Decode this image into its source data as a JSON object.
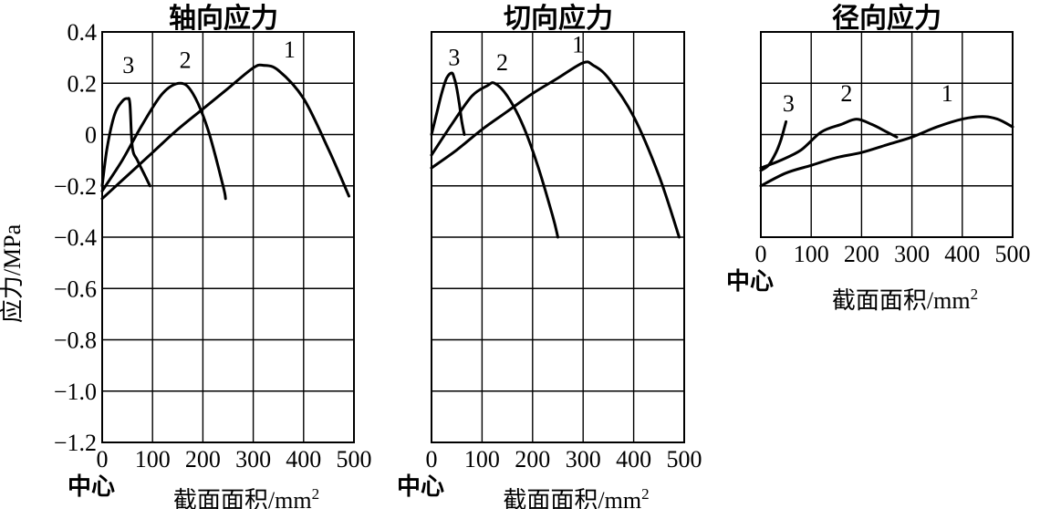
{
  "chart_data": [
    {
      "type": "line",
      "title": "轴向应力",
      "ylabel": "应力/MPa",
      "xlabel": "截面面积/mm",
      "xlabel_sup": "2",
      "xlabel_center": "中心",
      "xlim": [
        0,
        500
      ],
      "ylim": [
        -1.2,
        0.4
      ],
      "xticks": [
        0,
        100,
        200,
        300,
        400,
        500
      ],
      "xtick_labels": [
        "0",
        "100",
        "200",
        "300",
        "400",
        "500"
      ],
      "yticks": [
        -1.2,
        -1.0,
        -0.8,
        -0.6,
        -0.4,
        -0.2,
        0,
        0.2,
        0.4
      ],
      "ytick_labels": [
        "-1.2",
        "-1.0",
        "-0.8",
        "-0.6",
        "-0.4",
        "-0.2",
        "0",
        "0.2",
        "0.4"
      ],
      "grid": true,
      "series": [
        {
          "name": "1",
          "x": [
            0,
            50,
            100,
            150,
            200,
            250,
            300,
            320,
            350,
            400,
            450,
            490
          ],
          "y": [
            -0.25,
            -0.16,
            -0.07,
            0.02,
            0.1,
            0.18,
            0.26,
            0.27,
            0.25,
            0.14,
            -0.06,
            -0.24
          ]
        },
        {
          "name": "2",
          "x": [
            0,
            40,
            80,
            120,
            155,
            180,
            210,
            240,
            245
          ],
          "y": [
            -0.22,
            -0.1,
            0.04,
            0.16,
            0.2,
            0.16,
            0.02,
            -0.2,
            -0.25
          ]
        },
        {
          "name": "3",
          "x": [
            0,
            10,
            25,
            40,
            50,
            55,
            60,
            70,
            85,
            95
          ],
          "y": [
            -0.2,
            -0.05,
            0.08,
            0.13,
            0.14,
            0.12,
            -0.05,
            -0.1,
            -0.16,
            -0.2
          ]
        }
      ],
      "labels": [
        {
          "text": "1",
          "x": 372,
          "y": 0.3
        },
        {
          "text": "2",
          "x": 165,
          "y": 0.26
        },
        {
          "text": "3",
          "x": 52,
          "y": 0.24
        }
      ]
    },
    {
      "type": "line",
      "title": "切向应力",
      "xlabel": "截面面积/mm",
      "xlabel_sup": "2",
      "xlabel_center": "中心",
      "xlim": [
        0,
        500
      ],
      "ylim": [
        -1.2,
        0.4
      ],
      "xticks": [
        0,
        100,
        200,
        300,
        400,
        500
      ],
      "xtick_labels": [
        "0",
        "100",
        "200",
        "300",
        "400",
        "500"
      ],
      "grid": true,
      "series": [
        {
          "name": "1",
          "x": [
            0,
            50,
            100,
            150,
            200,
            250,
            300,
            320,
            350,
            400,
            450,
            490
          ],
          "y": [
            -0.13,
            -0.06,
            0.02,
            0.09,
            0.16,
            0.22,
            0.28,
            0.27,
            0.22,
            0.07,
            -0.16,
            -0.4
          ]
        },
        {
          "name": "2",
          "x": [
            0,
            40,
            80,
            110,
            125,
            150,
            180,
            210,
            240,
            250
          ],
          "y": [
            -0.08,
            0.04,
            0.15,
            0.19,
            0.2,
            0.15,
            0.04,
            -0.12,
            -0.32,
            -0.4
          ]
        },
        {
          "name": "3",
          "x": [
            0,
            10,
            20,
            30,
            40,
            45,
            50,
            55,
            60,
            65
          ],
          "y": [
            0,
            0.08,
            0.16,
            0.22,
            0.24,
            0.22,
            0.18,
            0.12,
            0.05,
            0
          ]
        }
      ],
      "labels": [
        {
          "text": "1",
          "x": 290,
          "y": 0.32
        },
        {
          "text": "2",
          "x": 140,
          "y": 0.25
        },
        {
          "text": "3",
          "x": 45,
          "y": 0.27
        }
      ]
    },
    {
      "type": "line",
      "title": "径向应力",
      "xlabel": "截面面积/mm",
      "xlabel_sup": "2",
      "xlabel_center": "中心",
      "xlim": [
        0,
        500
      ],
      "ylim": [
        -0.4,
        0.4
      ],
      "xticks": [
        0,
        100,
        200,
        300,
        400,
        500
      ],
      "xtick_labels": [
        "0",
        "100",
        "200",
        "300",
        "400",
        "500"
      ],
      "grid": true,
      "series": [
        {
          "name": "1",
          "x": [
            0,
            50,
            100,
            150,
            200,
            250,
            300,
            350,
            400,
            440,
            470,
            500
          ],
          "y": [
            -0.2,
            -0.15,
            -0.12,
            -0.09,
            -0.07,
            -0.04,
            -0.01,
            0.03,
            0.06,
            0.07,
            0.06,
            0.03
          ]
        },
        {
          "name": "2",
          "x": [
            0,
            40,
            80,
            120,
            160,
            190,
            220,
            250,
            270
          ],
          "y": [
            -0.13,
            -0.1,
            -0.06,
            0.01,
            0.04,
            0.06,
            0.04,
            0.01,
            -0.01
          ]
        },
        {
          "name": "3",
          "x": [
            0,
            15,
            30,
            40,
            50
          ],
          "y": [
            -0.14,
            -0.12,
            -0.07,
            -0.02,
            0.05
          ]
        }
      ],
      "labels": [
        {
          "text": "1",
          "x": 370,
          "y": 0.13
        },
        {
          "text": "2",
          "x": 170,
          "y": 0.13
        },
        {
          "text": "3",
          "x": 55,
          "y": 0.09
        }
      ]
    }
  ]
}
